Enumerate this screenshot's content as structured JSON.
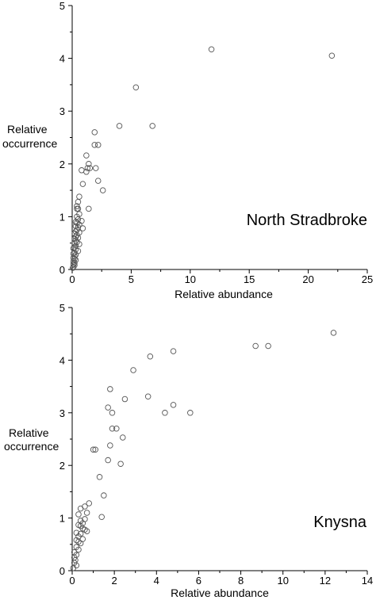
{
  "chart_data": [
    {
      "type": "scatter",
      "panel_label": "North Stradbroke",
      "xlabel": "Relative abundance",
      "ylabel_lines": [
        "Relative",
        "occurrence"
      ],
      "xlim": [
        0,
        25
      ],
      "ylim": [
        0,
        5
      ],
      "xticks": [
        "0",
        "5",
        "10",
        "15",
        "20",
        "25"
      ],
      "yticks": [
        "0",
        "1",
        "2",
        "3",
        "4",
        "5"
      ],
      "grid": false,
      "points": [
        [
          11.8,
          4.17
        ],
        [
          22.0,
          4.05
        ],
        [
          5.4,
          3.45
        ],
        [
          4.0,
          2.72
        ],
        [
          6.8,
          2.72
        ],
        [
          1.9,
          2.6
        ],
        [
          1.9,
          2.36
        ],
        [
          2.2,
          2.36
        ],
        [
          1.2,
          2.16
        ],
        [
          1.4,
          2.0
        ],
        [
          1.3,
          1.92
        ],
        [
          1.5,
          1.92
        ],
        [
          2.0,
          1.92
        ],
        [
          0.8,
          1.88
        ],
        [
          1.2,
          1.85
        ],
        [
          2.2,
          1.68
        ],
        [
          0.9,
          1.62
        ],
        [
          2.6,
          1.5
        ],
        [
          0.6,
          1.38
        ],
        [
          0.5,
          1.28
        ],
        [
          0.4,
          1.2
        ],
        [
          1.4,
          1.15
        ],
        [
          0.4,
          1.15
        ],
        [
          0.5,
          1.15
        ],
        [
          0.6,
          1.05
        ],
        [
          0.4,
          1.0
        ],
        [
          0.5,
          0.95
        ],
        [
          0.8,
          0.92
        ],
        [
          0.3,
          0.9
        ],
        [
          0.4,
          0.88
        ],
        [
          0.6,
          0.85
        ],
        [
          0.3,
          0.82
        ],
        [
          0.5,
          0.8
        ],
        [
          0.9,
          0.78
        ],
        [
          0.4,
          0.75
        ],
        [
          0.3,
          0.72
        ],
        [
          0.6,
          0.7
        ],
        [
          0.2,
          0.68
        ],
        [
          0.4,
          0.65
        ],
        [
          0.3,
          0.62
        ],
        [
          0.5,
          0.6
        ],
        [
          0.2,
          0.58
        ],
        [
          0.3,
          0.55
        ],
        [
          0.4,
          0.52
        ],
        [
          0.2,
          0.5
        ],
        [
          0.6,
          0.48
        ],
        [
          0.3,
          0.45
        ],
        [
          0.2,
          0.42
        ],
        [
          0.1,
          0.4
        ],
        [
          0.3,
          0.38
        ],
        [
          0.5,
          0.35
        ],
        [
          0.2,
          0.32
        ],
        [
          0.1,
          0.3
        ],
        [
          0.3,
          0.28
        ],
        [
          0.2,
          0.25
        ],
        [
          0.1,
          0.22
        ],
        [
          0.2,
          0.2
        ],
        [
          0.3,
          0.18
        ],
        [
          0.1,
          0.15
        ],
        [
          0.2,
          0.12
        ],
        [
          0.1,
          0.1
        ],
        [
          0.2,
          0.08
        ],
        [
          0.1,
          0.05
        ],
        [
          0.05,
          0.03
        ]
      ]
    },
    {
      "type": "scatter",
      "panel_label": "Knysna",
      "xlabel": "Relative abundance",
      "ylabel_lines": [
        "Relative",
        "occurrence"
      ],
      "xlim": [
        0,
        14
      ],
      "ylim": [
        0,
        5
      ],
      "xticks": [
        "0",
        "2",
        "4",
        "6",
        "8",
        "10",
        "12",
        "14"
      ],
      "yticks": [
        "0",
        "1",
        "2",
        "3",
        "4",
        "5"
      ],
      "grid": false,
      "points": [
        [
          12.4,
          4.52
        ],
        [
          8.7,
          4.27
        ],
        [
          9.3,
          4.27
        ],
        [
          4.8,
          4.17
        ],
        [
          3.7,
          4.07
        ],
        [
          2.9,
          3.81
        ],
        [
          1.8,
          3.45
        ],
        [
          3.6,
          3.31
        ],
        [
          2.5,
          3.26
        ],
        [
          4.8,
          3.15
        ],
        [
          1.7,
          3.1
        ],
        [
          1.9,
          3.0
        ],
        [
          4.4,
          3.0
        ],
        [
          5.6,
          3.0
        ],
        [
          1.9,
          2.7
        ],
        [
          2.1,
          2.7
        ],
        [
          2.4,
          2.53
        ],
        [
          1.8,
          2.38
        ],
        [
          1.0,
          2.3
        ],
        [
          1.1,
          2.3
        ],
        [
          1.7,
          2.1
        ],
        [
          2.3,
          2.03
        ],
        [
          1.3,
          1.78
        ],
        [
          1.5,
          1.43
        ],
        [
          0.8,
          1.28
        ],
        [
          0.6,
          1.22
        ],
        [
          0.4,
          1.18
        ],
        [
          0.7,
          1.1
        ],
        [
          0.3,
          1.07
        ],
        [
          1.4,
          1.02
        ],
        [
          0.6,
          0.98
        ],
        [
          0.4,
          0.95
        ],
        [
          0.5,
          0.9
        ],
        [
          0.3,
          0.87
        ],
        [
          0.4,
          0.85
        ],
        [
          0.5,
          0.8
        ],
        [
          0.6,
          0.78
        ],
        [
          0.7,
          0.75
        ],
        [
          0.2,
          0.72
        ],
        [
          0.4,
          0.7
        ],
        [
          0.3,
          0.65
        ],
        [
          0.5,
          0.6
        ],
        [
          0.2,
          0.58
        ],
        [
          0.3,
          0.55
        ],
        [
          0.4,
          0.52
        ],
        [
          0.2,
          0.45
        ],
        [
          0.3,
          0.4
        ],
        [
          0.1,
          0.35
        ],
        [
          0.2,
          0.3
        ],
        [
          0.1,
          0.25
        ],
        [
          0.15,
          0.2
        ],
        [
          0.1,
          0.15
        ],
        [
          0.2,
          0.1
        ],
        [
          0.05,
          0.05
        ]
      ]
    }
  ]
}
